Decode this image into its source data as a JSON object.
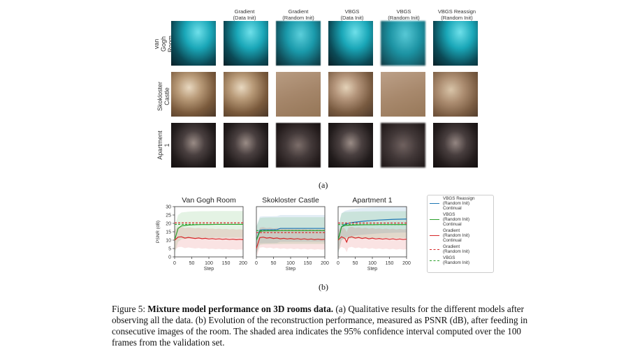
{
  "figure": {
    "columns": [
      "Gradient\n(Data Init)",
      "Gradient\n(Random Init)",
      "VBGS\n(Data Init)",
      "VBGS\n(Random Init)",
      "VBGS Reassign\n(Random Init)"
    ],
    "rows": [
      "van Gogh\nRoom",
      "Skokloster\nCastle",
      "Apartment 1"
    ],
    "sublabel_a": "(a)",
    "sublabel_b": "(b)"
  },
  "caption": {
    "label": "Figure 5:",
    "title": "Mixture model performance on 3D rooms data.",
    "text": "(a) Qualitative results for the different models after observing all the data. (b) Evolution of the reconstruction performance, measured as PSNR (dB), after feeding in consecutive images of the room. The shaded area indicates the 95% confidence interval computed over the 100 frames from the validation set."
  },
  "legend": {
    "entries": [
      {
        "label": "VBGS Reassign\n(Random Init)\nContinual",
        "color": "#1f77b4",
        "dashed": false
      },
      {
        "label": "VBGS\n(Random Init)\nContinual",
        "color": "#2ca02c",
        "dashed": false
      },
      {
        "label": "Gradient\n(Random Init)\nContinual",
        "color": "#d62728",
        "dashed": false
      },
      {
        "label": "Gradient\n(Random Init)",
        "color": "#d62728",
        "dashed": true
      },
      {
        "label": "VBGS\n(Random Init)",
        "color": "#2ca02c",
        "dashed": true
      }
    ]
  },
  "chart_data": [
    {
      "type": "line",
      "title": "Van Gogh Room",
      "xlabel": "Step",
      "ylabel": "PSNR (dB)",
      "xlim": [
        0,
        200
      ],
      "ylim": [
        0,
        30
      ],
      "xticks": [
        0,
        50,
        100,
        150,
        200
      ],
      "yticks": [
        0,
        5,
        10,
        15,
        20,
        25,
        30
      ],
      "series": [
        {
          "name": "VBGS\n(Random Init)\nContinual",
          "x": [
            0,
            10,
            20,
            40,
            60,
            80,
            100,
            120,
            140,
            160,
            180,
            200
          ],
          "y": [
            10,
            17,
            18.5,
            19,
            19.2,
            19.3,
            19.3,
            19.4,
            19.4,
            19.4,
            19.4,
            19.4
          ]
        },
        {
          "name": "Gradient\n(Random Init)\nContinual",
          "x": [
            0,
            10,
            20,
            30,
            40,
            50,
            60,
            70,
            80,
            90,
            100,
            110,
            120,
            130,
            140,
            150,
            160,
            170,
            180,
            190,
            200
          ],
          "y": [
            10,
            11.8,
            12,
            11.2,
            11.6,
            11.3,
            11,
            11.3,
            10.9,
            11.1,
            10.7,
            10.9,
            10.6,
            10.8,
            10.5,
            10.7,
            10.4,
            10.6,
            10.3,
            10.5,
            10.3
          ]
        },
        {
          "name": "Gradient\n(Random Init)",
          "x": [
            0,
            200
          ],
          "y": [
            20.3,
            20.3
          ]
        },
        {
          "name": "VBGS\n(Random Init)",
          "x": [
            0,
            200
          ],
          "y": [
            19.4,
            19.4
          ]
        }
      ]
    },
    {
      "type": "line",
      "title": "Skokloster Castle",
      "xlabel": "Step",
      "xlim": [
        0,
        200
      ],
      "ylim": [
        0,
        30
      ],
      "xticks": [
        0,
        50,
        100,
        150,
        200
      ],
      "series": [
        {
          "name": "VBGS Reassign\n(Random Init)\nContinual",
          "x": [
            0,
            10,
            20,
            40,
            60,
            70,
            80,
            100,
            120,
            140,
            160,
            180,
            200
          ],
          "y": [
            10,
            16,
            16.2,
            16.2,
            16.3,
            17,
            17,
            17,
            17,
            17,
            17,
            17,
            17
          ]
        },
        {
          "name": "VBGS\n(Random Init)\nContinual",
          "x": [
            0,
            10,
            20,
            40,
            60,
            80,
            100,
            120,
            140,
            160,
            180,
            200
          ],
          "y": [
            10,
            15.2,
            15.5,
            15.6,
            15.6,
            15.7,
            15.7,
            15.7,
            15.7,
            15.7,
            15.7,
            15.7
          ]
        },
        {
          "name": "Gradient\n(Random Init)\nContinual",
          "x": [
            0,
            10,
            20,
            30,
            40,
            50,
            60,
            70,
            80,
            90,
            100,
            110,
            120,
            130,
            140,
            150,
            160,
            170,
            180,
            190,
            200
          ],
          "y": [
            5,
            11.5,
            11.8,
            11.2,
            11.5,
            11,
            11.3,
            10.8,
            11.1,
            10.7,
            11,
            10.6,
            10.9,
            10.5,
            10.8,
            10.4,
            10.7,
            10.3,
            10.6,
            10.3,
            10.5
          ]
        },
        {
          "name": "Gradient\n(Random Init)",
          "x": [
            0,
            200
          ],
          "y": [
            14.5,
            14.5
          ]
        },
        {
          "name": "VBGS\n(Random Init)",
          "x": [
            0,
            200
          ],
          "y": [
            15.7,
            15.7
          ]
        }
      ]
    },
    {
      "type": "line",
      "title": "Apartment 1",
      "xlabel": "Step",
      "xlim": [
        0,
        200
      ],
      "ylim": [
        0,
        30
      ],
      "xticks": [
        0,
        50,
        100,
        150,
        200
      ],
      "series": [
        {
          "name": "VBGS Reassign\n(Random Init)\nContinual",
          "x": [
            0,
            10,
            20,
            40,
            60,
            80,
            100,
            120,
            140,
            160,
            180,
            200
          ],
          "y": [
            10,
            18,
            19.5,
            20.5,
            21,
            21.4,
            21.7,
            22,
            22.2,
            22.4,
            22.5,
            22.6
          ]
        },
        {
          "name": "VBGS\n(Random Init)\nContinual",
          "x": [
            0,
            10,
            20,
            40,
            60,
            80,
            100,
            120,
            140,
            160,
            180,
            200
          ],
          "y": [
            10,
            18,
            18.8,
            19,
            19.1,
            19.2,
            19.2,
            19.3,
            19.3,
            19.3,
            19.3,
            19.3
          ]
        },
        {
          "name": "Gradient\n(Random Init)\nContinual",
          "x": [
            0,
            10,
            20,
            25,
            30,
            40,
            50,
            60,
            70,
            80,
            90,
            100,
            110,
            120,
            130,
            140,
            150,
            160,
            170,
            180,
            190,
            200
          ],
          "y": [
            10,
            12,
            11,
            8.8,
            11.5,
            12,
            11.2,
            11.6,
            11,
            11.4,
            10.8,
            11.2,
            10.7,
            11,
            10.6,
            10.9,
            10.5,
            10.8,
            10.4,
            10.7,
            10.4,
            10.6
          ]
        },
        {
          "name": "Gradient\n(Random Init)",
          "x": [
            0,
            200
          ],
          "y": [
            20.2,
            20.2
          ]
        },
        {
          "name": "VBGS\n(Random Init)",
          "x": [
            0,
            200
          ],
          "y": [
            19.3,
            19.3
          ]
        }
      ]
    }
  ]
}
